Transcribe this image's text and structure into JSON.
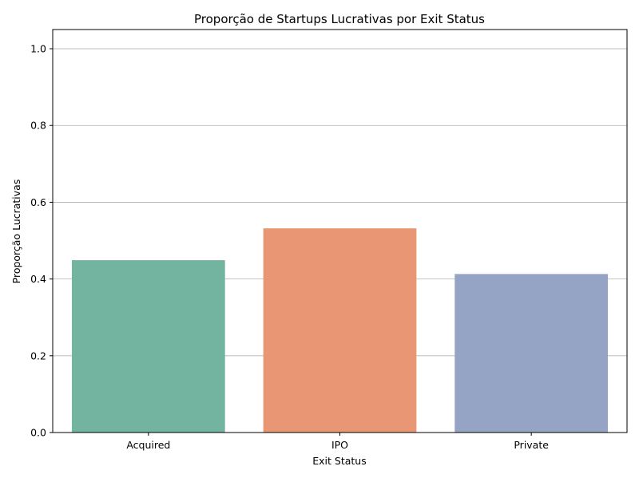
{
  "chart_data": {
    "type": "bar",
    "title": "Proporção de Startups Lucrativas por Exit Status",
    "xlabel": "Exit Status",
    "ylabel": "Proporção Lucrativas",
    "categories": [
      "Acquired",
      "IPO",
      "Private"
    ],
    "values": [
      0.449,
      0.532,
      0.413
    ],
    "colors": [
      "#72b4a0",
      "#e99675",
      "#95a4c4"
    ],
    "ylim": [
      0,
      1.05
    ],
    "yticks": [
      0.0,
      0.2,
      0.4,
      0.6,
      0.8,
      1.0
    ],
    "ytick_labels": [
      "0.0",
      "0.2",
      "0.4",
      "0.6",
      "0.8",
      "1.0"
    ],
    "grid": "y",
    "legend": "none"
  }
}
